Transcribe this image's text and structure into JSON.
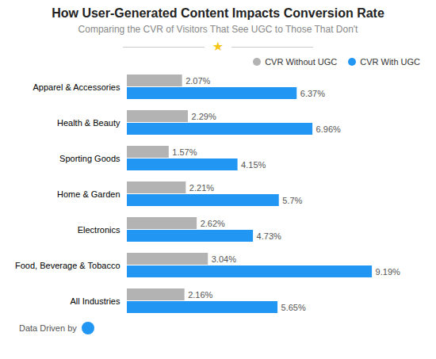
{
  "chart_data": {
    "type": "bar",
    "orientation": "horizontal",
    "title": "How User-Generated Content Impacts Conversion Rate",
    "subtitle": "Comparing the CVR of Visitors That See UGC to Those That Don't",
    "categories": [
      "Apparel & Accessories",
      "Health & Beauty",
      "Sporting Goods",
      "Home & Garden",
      "Electronics",
      "Food, Beverage & Tobacco",
      "All Industries"
    ],
    "series": [
      {
        "name": "CVR Without UGC",
        "color": "#b3b3b3",
        "values": [
          2.07,
          2.29,
          1.57,
          2.21,
          2.62,
          3.04,
          2.16
        ],
        "value_labels": [
          "2.07%",
          "2.29%",
          "1.57%",
          "2.21%",
          "2.62%",
          "3.04%",
          "2.16%"
        ]
      },
      {
        "name": "CVR With UGC",
        "color": "#2196f3",
        "values": [
          6.37,
          6.96,
          4.15,
          5.7,
          4.73,
          9.19,
          5.65
        ],
        "value_labels": [
          "6.37%",
          "6.96%",
          "4.15%",
          "5.7%",
          "4.73%",
          "9.19%",
          "5.65%"
        ]
      }
    ],
    "xlim": [
      0,
      11
    ],
    "data_labels": true,
    "tick_labels": "y",
    "grid": false,
    "legend": "upper right",
    "annotations": [
      {
        "text": "★",
        "color": "#f5c518"
      },
      {
        "text": "Data Driven by"
      }
    ]
  }
}
